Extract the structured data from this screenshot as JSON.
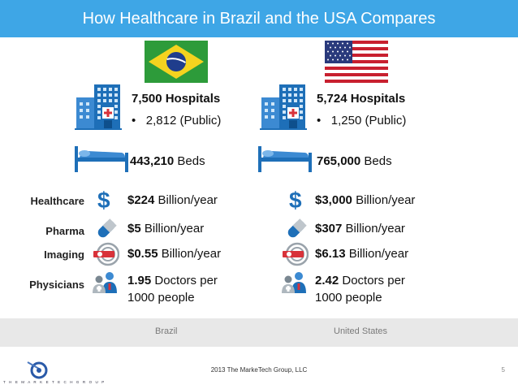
{
  "title": "How Healthcare in Brazil and the USA Compares",
  "row_labels": {
    "healthcare": "Healthcare",
    "pharma": "Pharma",
    "imaging": "Imaging",
    "physicians": "Physicians"
  },
  "brazil": {
    "hospitals_value": "7,500",
    "hospitals_unit": "Hospitals",
    "hospitals_public": "2,812 (Public)",
    "beds_value": "443,210",
    "beds_unit": "Beds",
    "healthcare_value": "$224",
    "healthcare_unit": "Billion/year",
    "pharma_value": "$5",
    "pharma_unit": "Billion/year",
    "imaging_value": "$0.55",
    "imaging_unit": "Billion/year",
    "physicians_value": "1.95",
    "physicians_unit": "Doctors per",
    "physicians_unit2": "1000 people",
    "label": "Brazil"
  },
  "usa": {
    "hospitals_value": "5,724",
    "hospitals_unit": "Hospitals",
    "hospitals_public": "1,250 (Public)",
    "beds_value": "765,000",
    "beds_unit": "Beds",
    "healthcare_value": "$3,000",
    "healthcare_unit": "Billion/year",
    "pharma_value": "$307",
    "pharma_unit": "Billion/year",
    "imaging_value": "$6.13",
    "imaging_unit": "Billion/year",
    "physicians_value": "2.42",
    "physicians_unit": "Doctors per",
    "physicians_unit2": "1000 people",
    "label": "United States"
  },
  "bullet": "•",
  "footer": "2013   The MarkeTech Group, LLC",
  "page_number": "5",
  "brand": "T H E   M A R K E T E C H   G R O U P",
  "colors": {
    "title_bar": "#3ea6e6",
    "icon_blue": "#1e6fb8",
    "icon_red": "#d8323a",
    "country_bar": "#e8e8e8"
  },
  "icons": [
    "brazil-flag",
    "usa-flag",
    "hospital-icon",
    "bed-icon",
    "dollar-icon",
    "pill-icon",
    "imaging-icon",
    "doctors-icon"
  ]
}
